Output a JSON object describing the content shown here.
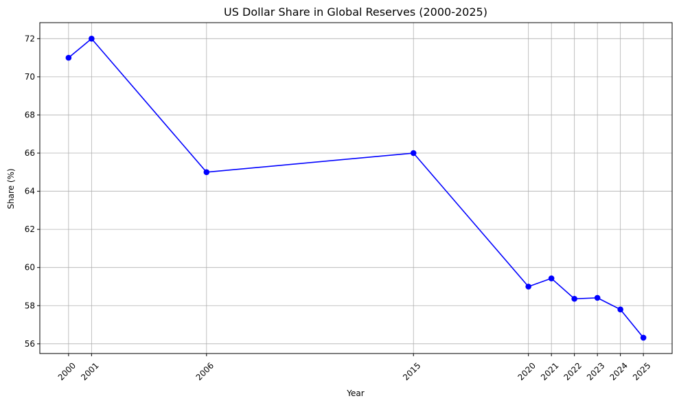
{
  "chart_data": {
    "type": "line",
    "title": "US Dollar Share in Global Reserves (2000-2025)",
    "xlabel": "Year",
    "ylabel": "Share (%)",
    "x": [
      2000,
      2001,
      2006,
      2015,
      2020,
      2021,
      2022,
      2023,
      2024,
      2025
    ],
    "series": [
      {
        "values": [
          71.0,
          72.0,
          65.0,
          66.0,
          59.0,
          59.43,
          58.36,
          58.41,
          57.8,
          56.32
        ]
      }
    ],
    "xticks": [
      "2000",
      "2001",
      "2006",
      "2015",
      "2020",
      "2021",
      "2022",
      "2023",
      "2024",
      "2025"
    ],
    "yticks": [
      "56",
      "58",
      "60",
      "62",
      "64",
      "66",
      "68",
      "70",
      "72"
    ],
    "xlim": [
      1998.75,
      2026.25
    ],
    "ylim": [
      55.49,
      72.84
    ],
    "grid": true,
    "line_color": "#0000ff",
    "marker": "circle"
  }
}
